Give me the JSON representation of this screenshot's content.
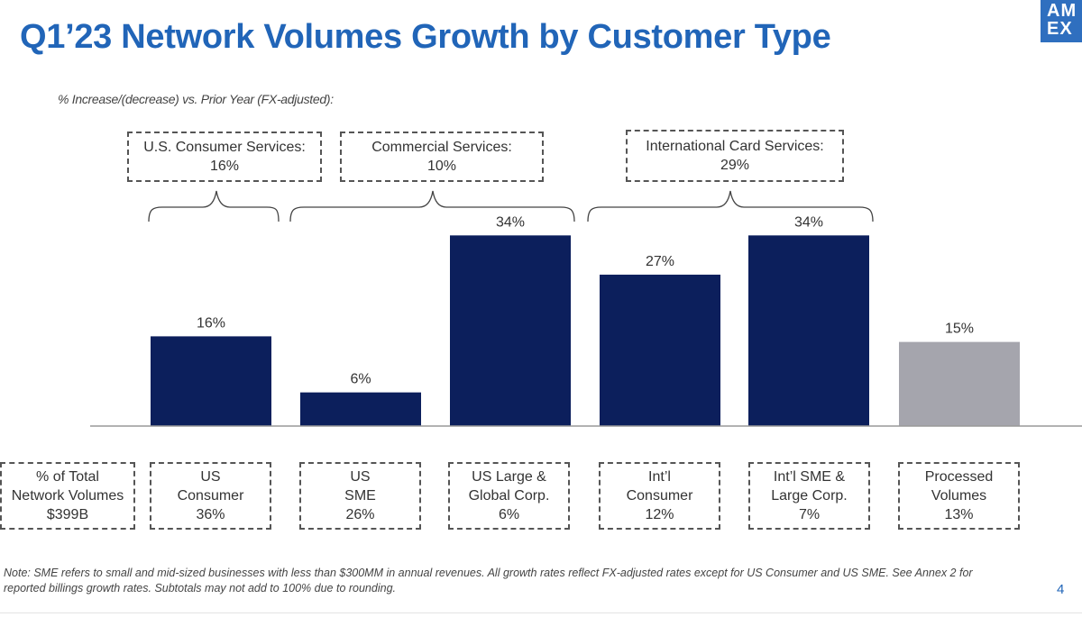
{
  "header": {
    "title": "Q1’23 Network Volumes Growth by Customer Type",
    "logo_text": [
      "AM",
      "EX"
    ],
    "brand_color": "#2165b8"
  },
  "subtitle": "% Increase/(decrease) vs. Prior Year (FX-adjusted):",
  "segments": [
    {
      "label": "U.S. Consumer Services:",
      "value": "16%"
    },
    {
      "label": "Commercial Services:",
      "value": "10%"
    },
    {
      "label": "International Card Services:",
      "value": "29%"
    }
  ],
  "chart_data": {
    "type": "bar",
    "categories": [
      "US Consumer",
      "US SME",
      "US Large & Global Corp.",
      "Int’l Consumer",
      "Int’l SME & Large Corp.",
      "Processed Volumes"
    ],
    "values": [
      16,
      6,
      34,
      27,
      34,
      15
    ],
    "data_labels": [
      "16%",
      "6%",
      "34%",
      "27%",
      "34%",
      "15%"
    ],
    "colors": [
      "#0c1f5c",
      "#0c1f5c",
      "#0c1f5c",
      "#0c1f5c",
      "#0c1f5c",
      "#a5a5ad"
    ],
    "ylim": [
      0,
      40
    ],
    "grid": false,
    "title": "",
    "xlabel": "",
    "ylabel": ""
  },
  "share_table": {
    "header": [
      "% of Total",
      "Network Volumes",
      "$399B"
    ],
    "cells": [
      [
        "US",
        "Consumer",
        "36%"
      ],
      [
        "US",
        "SME",
        "26%"
      ],
      [
        "US Large &",
        "Global Corp.",
        "6%"
      ],
      [
        "Int’l",
        "Consumer",
        "12%"
      ],
      [
        "Int’l SME &",
        "Large Corp.",
        "7%"
      ],
      [
        "Processed",
        "Volumes",
        "13%"
      ]
    ]
  },
  "note": "Note: SME refers to small and mid-sized businesses with less than $300MM in annual revenues. All growth rates reflect FX-adjusted rates except for US Consumer and US SME. See Annex 2 for reported billings growth rates. Subtotals may not add to 100% due to rounding.",
  "page_number": "4"
}
